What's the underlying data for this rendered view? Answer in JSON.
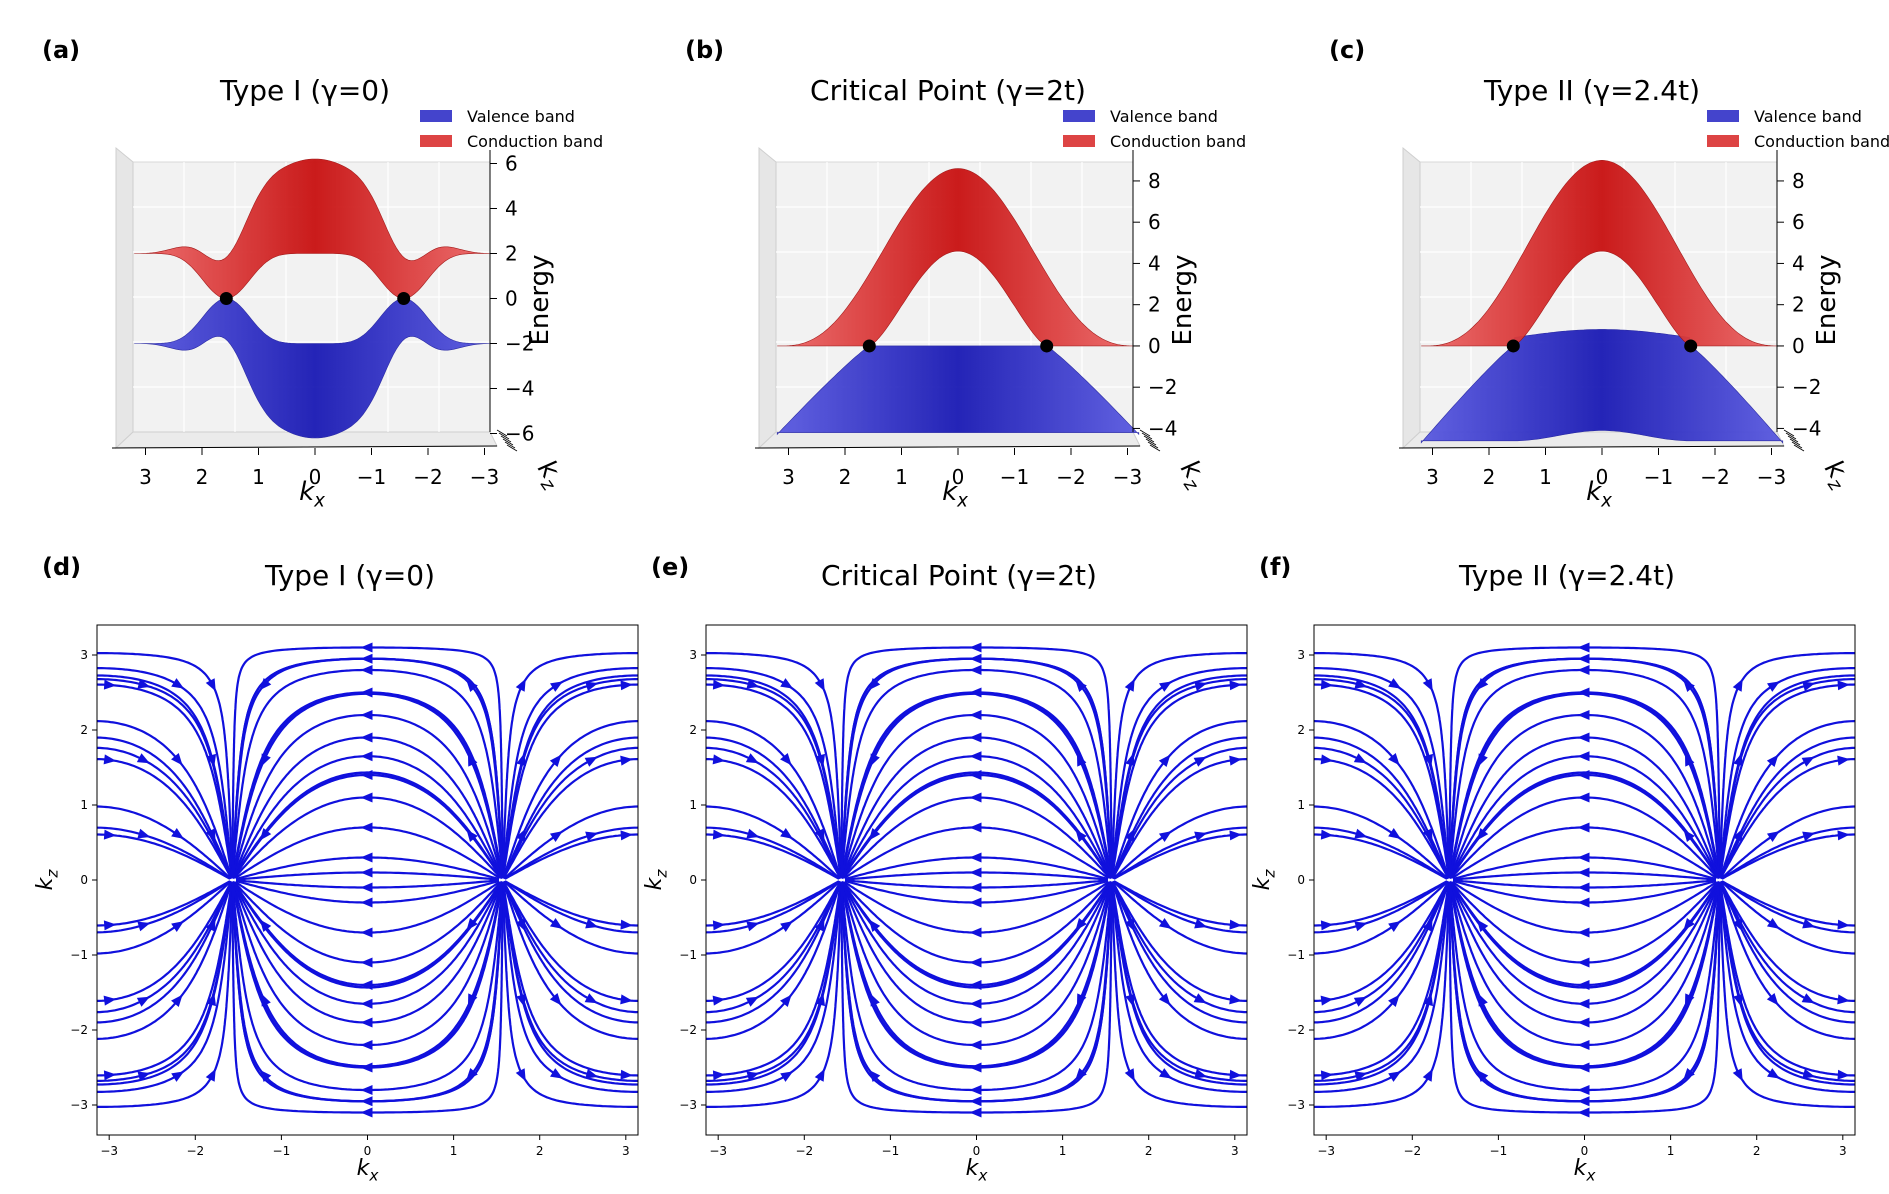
{
  "chart_data": [
    {
      "panel": "a",
      "panel_label": "(a)",
      "type": "surface3d",
      "title": "Type I (γ=0)",
      "gamma": 0,
      "xlabel": "k_x",
      "zlabel_right": "k_z",
      "ylabel": "Energy",
      "xticks": [
        "3",
        "2",
        "1",
        "0",
        "−1",
        "−2",
        "−3"
      ],
      "energy_ticks": [
        "6",
        "4",
        "2",
        "0",
        "−2",
        "−4",
        "−6"
      ],
      "energy_range": [
        -6.6,
        6.6
      ],
      "series": [
        {
          "name": "Valence band",
          "color": "#1414c8",
          "legend_color": "#4444cc",
          "max": -0.0,
          "min": -6.2
        },
        {
          "name": "Conduction band",
          "color": "#e01818",
          "legend_color": "#dd4444",
          "max": 6.2,
          "min": 0.0
        }
      ],
      "nodes_kx": [
        1.57,
        -1.57
      ]
    },
    {
      "panel": "b",
      "panel_label": "(b)",
      "type": "surface3d",
      "title": "Critical Point (γ=2t)",
      "gamma": 2,
      "xlabel": "k_x",
      "zlabel_right": "k_z",
      "ylabel": "Energy",
      "xticks": [
        "3",
        "2",
        "1",
        "0",
        "−1",
        "−2",
        "−3"
      ],
      "energy_ticks": [
        "8",
        "6",
        "4",
        "2",
        "0",
        "−2",
        "−4"
      ],
      "energy_range": [
        -4.9,
        9.5
      ],
      "series": [
        {
          "name": "Valence band",
          "color": "#1414c8",
          "legend_color": "#4444cc",
          "max": 0.0,
          "min": -4.2
        },
        {
          "name": "Conduction band",
          "color": "#e01818",
          "legend_color": "#dd4444",
          "max": 8.6,
          "min": 0.0
        }
      ],
      "nodes_kx": [
        1.57,
        -1.57
      ]
    },
    {
      "panel": "c",
      "panel_label": "(c)",
      "type": "surface3d",
      "title": "Type II (γ=2.4t)",
      "gamma": 2.4,
      "xlabel": "k_x",
      "zlabel_right": "k_z",
      "ylabel": "Energy",
      "xticks": [
        "3",
        "2",
        "1",
        "0",
        "−1",
        "−2",
        "−3"
      ],
      "energy_ticks": [
        "8",
        "6",
        "4",
        "2",
        "0",
        "−2",
        "−4"
      ],
      "energy_range": [
        -4.9,
        9.5
      ],
      "series": [
        {
          "name": "Valence band",
          "color": "#1414c8",
          "legend_color": "#4444cc",
          "max": 0.8,
          "min": -4.6
        },
        {
          "name": "Conduction band",
          "color": "#e01818",
          "legend_color": "#dd4444",
          "max": 9.0,
          "min": 0.0
        }
      ],
      "nodes_kx": [
        1.57,
        -1.57
      ]
    },
    {
      "panel": "d",
      "panel_label": "(d)",
      "type": "streamplot",
      "title": "Type I (γ=0)",
      "xlabel": "k_x",
      "ylabel": "k_z",
      "xlim": [
        -3.14159,
        3.14159
      ],
      "ylim": [
        -3.4,
        3.4
      ],
      "xticks": [
        -3,
        -2,
        -1,
        0,
        1,
        2,
        3
      ],
      "yticks": [
        -3,
        -2,
        -1,
        0,
        1,
        2,
        3
      ],
      "xtick_labels": [
        "−3",
        "−2",
        "−1",
        "0",
        "1",
        "2",
        "3"
      ],
      "ytick_labels": [
        "−3",
        "−2",
        "−1",
        "0",
        "1",
        "2",
        "3"
      ],
      "color": "#1010dd",
      "nodes": [
        [
          -1.57,
          0
        ],
        [
          1.57,
          0
        ]
      ]
    },
    {
      "panel": "e",
      "panel_label": "(e)",
      "type": "streamplot",
      "title": "Critical Point (γ=2t)",
      "xlabel": "k_x",
      "ylabel": "k_z",
      "xlim": [
        -3.14159,
        3.14159
      ],
      "ylim": [
        -3.4,
        3.4
      ],
      "xticks": [
        -3,
        -2,
        -1,
        0,
        1,
        2,
        3
      ],
      "yticks": [
        -3,
        -2,
        -1,
        0,
        1,
        2,
        3
      ],
      "xtick_labels": [
        "−3",
        "−2",
        "−1",
        "0",
        "1",
        "2",
        "3"
      ],
      "ytick_labels": [
        "−3",
        "−2",
        "−1",
        "0",
        "1",
        "2",
        "3"
      ],
      "color": "#1010dd",
      "nodes": [
        [
          -1.57,
          0
        ],
        [
          1.57,
          0
        ]
      ]
    },
    {
      "panel": "f",
      "panel_label": "(f)",
      "type": "streamplot",
      "title": "Type II (γ=2.4t)",
      "xlabel": "k_x",
      "ylabel": "k_z",
      "xlim": [
        -3.14159,
        3.14159
      ],
      "ylim": [
        -3.4,
        3.4
      ],
      "xticks": [
        -3,
        -2,
        -1,
        0,
        1,
        2,
        3
      ],
      "yticks": [
        -3,
        -2,
        -1,
        0,
        1,
        2,
        3
      ],
      "xtick_labels": [
        "−3",
        "−2",
        "−1",
        "0",
        "1",
        "2",
        "3"
      ],
      "ytick_labels": [
        "−3",
        "−2",
        "−1",
        "0",
        "1",
        "2",
        "3"
      ],
      "color": "#1010dd",
      "nodes": [
        [
          -1.57,
          0
        ],
        [
          1.57,
          0
        ]
      ]
    }
  ]
}
